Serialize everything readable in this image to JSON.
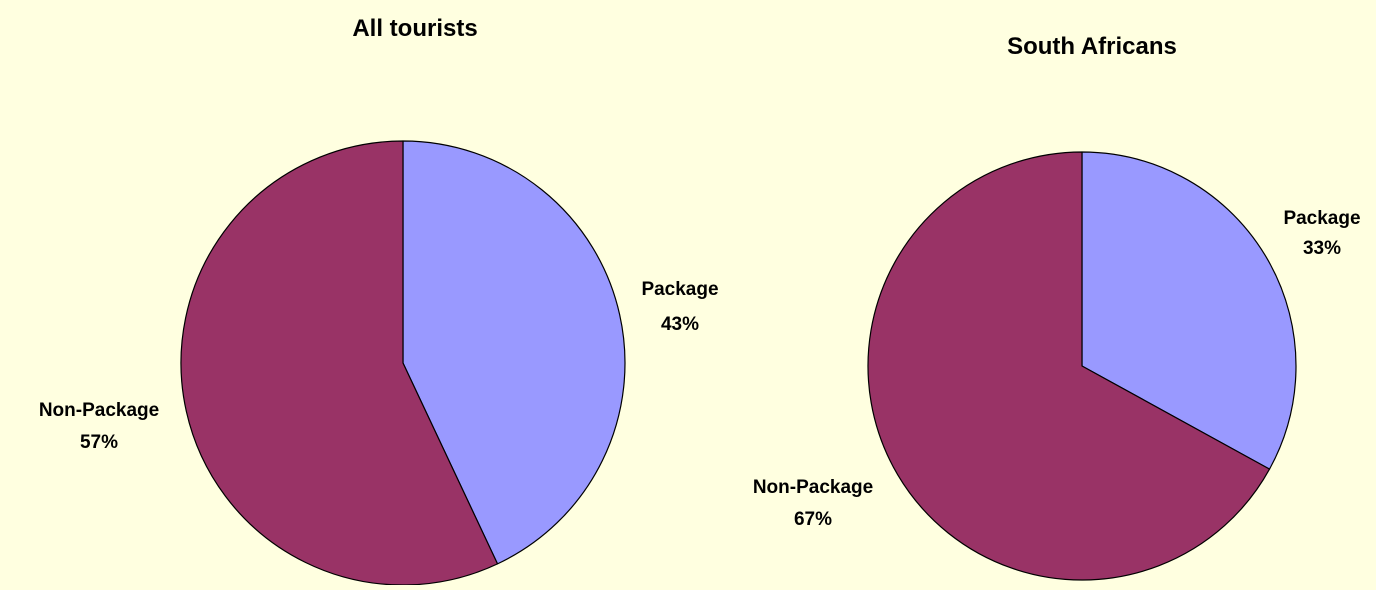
{
  "chart_data": [
    {
      "type": "pie",
      "title": "All tourists",
      "slices": [
        {
          "label": "Package",
          "value": 43,
          "percent_label": "43%"
        },
        {
          "label": "Non-Package",
          "value": 57,
          "percent_label": "57%"
        }
      ],
      "legend": "none"
    },
    {
      "type": "pie",
      "title": "South Africans",
      "slices": [
        {
          "label": "Package",
          "value": 33,
          "percent_label": "33%"
        },
        {
          "label": "Non-Package",
          "value": 67,
          "percent_label": "67%"
        }
      ],
      "legend": "none"
    }
  ],
  "colors": {
    "background": "#FFFFE0",
    "package": "#9999FF",
    "non_package": "#993366",
    "outline": "#000000"
  }
}
